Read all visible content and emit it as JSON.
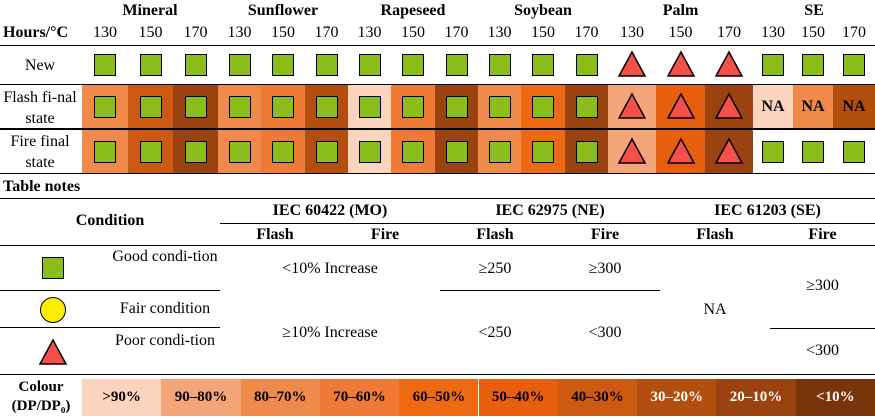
{
  "oils": [
    "Mineral",
    "Sunflower",
    "Rapeseed",
    "Soybean",
    "Palm",
    "SE"
  ],
  "hours_label": "Hours/°C",
  "temps": [
    "130",
    "150",
    "170",
    "130",
    "150",
    "170",
    "130",
    "150",
    "170",
    "130",
    "150",
    "170",
    "130",
    "150",
    "170",
    "130",
    "150",
    "170"
  ],
  "rows": [
    {
      "label": "New"
    },
    {
      "label": "Flash fi-nal state"
    },
    {
      "label": "Fire final state"
    }
  ],
  "na_text": "NA",
  "colors": {
    "c1": "#fad4bd",
    "c2": "#f5a679",
    "c3": "#f08a4a",
    "c4": "#ee7a35",
    "c5": "#ed6a12",
    "c6": "#e65f0f",
    "c7": "#cc5a12",
    "c8": "#b24e0e",
    "c9": "#9a4310",
    "c10": "#7a340a",
    "green": "#8bbd1b",
    "red": "#f4504a",
    "yellow": "#ffed00"
  },
  "notes": {
    "title": "Table notes",
    "condition_header": "Condition",
    "standards": [
      "IEC 60422 (MO)",
      "IEC 62975 (NE)",
      "IEC 61203 (SE)"
    ],
    "flash": "Flash",
    "fire": "Fire",
    "good": "Good condi-tion",
    "fair": "Fair condition",
    "poor": "Poor condi-tion",
    "mo_good": "<10% Increase",
    "mo_poor": "≥10% Increase",
    "ne_flash_good": "≥250",
    "ne_fire_good": "≥300",
    "ne_flash_poor": "<250",
    "ne_fire_poor": "<300",
    "se_flash": "NA",
    "se_fire_good": "≥300",
    "se_fire_poor": "<300"
  },
  "legend": {
    "label_line1": "Colour",
    "label_line2": "(DP/DP₀)",
    "items": [
      ">90%",
      "90–80%",
      "80–70%",
      "70–60%",
      "60–50%",
      "50–40%",
      "40–30%",
      "30–20%",
      "20–10%",
      "<10%"
    ]
  }
}
